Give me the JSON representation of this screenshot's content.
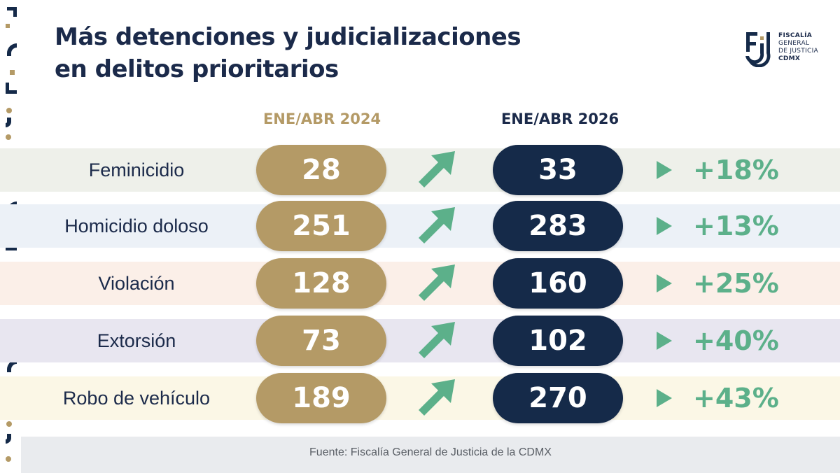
{
  "title_line1": "Más detenciones y judicializaciones",
  "title_line2": "en delitos prioritarios",
  "logo": {
    "line1": "FISCALÍA",
    "line2": "GENERAL",
    "line3": "DE JUSTICIA",
    "line4": "CDMX",
    "icon": "fgj-logo-icon"
  },
  "source": "Fuente: Fiscalía General de Justicia de la CDMX",
  "colors": {
    "navy": "#152a49",
    "gold": "#b49a66",
    "green": "#5cb08a",
    "band_feminicidio": "#eef0ea",
    "band_homicidio": "#ecf1f7",
    "band_violacion": "#fbefe8",
    "band_extorsion": "#e8e6f0",
    "band_robo": "#fbf7e6"
  },
  "chart_data": {
    "type": "table",
    "columns": [
      "ENE/ABR 2024",
      "ENE/ABR  2026"
    ],
    "rows": [
      {
        "label": "Feminicidio",
        "v2024": "28",
        "v2026": "33",
        "change": "+18%"
      },
      {
        "label": "Homicidio doloso",
        "v2024": "251",
        "v2026": "283",
        "change": "+13%"
      },
      {
        "label": "Violación",
        "v2024": "128",
        "v2026": "160",
        "change": "+25%"
      },
      {
        "label": "Extorsión",
        "v2024": "73",
        "v2026": "102",
        "change": "+40%"
      },
      {
        "label": "Robo de vehículo",
        "v2024": "189",
        "v2026": "270",
        "change": "+43%"
      }
    ]
  }
}
